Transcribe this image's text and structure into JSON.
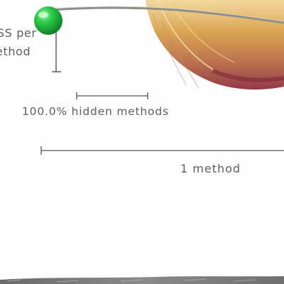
{
  "labels": {
    "cut_line_1": "SS per",
    "cut_line_2": "ethod",
    "hidden_scale": "100.0% hidden methods",
    "method_scale": "1 method"
  },
  "colors": {
    "pin_green": "#1fae3a",
    "feather_gold": "#d9a14a",
    "feather_crimson": "#8e2f3f",
    "scale_bar": "#555555",
    "text": "#5f5f5f"
  },
  "icons": {
    "pin": "green-pin-icon"
  }
}
